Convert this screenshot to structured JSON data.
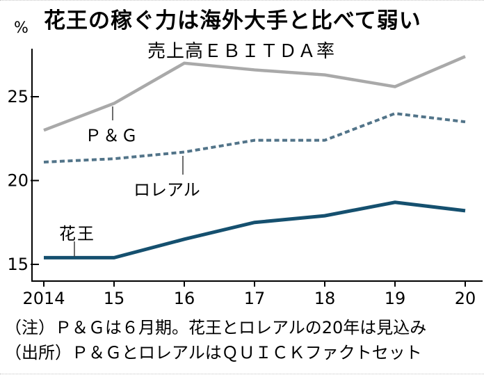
{
  "page": {
    "title": "花王の稼ぐ力は海外大手と比べて弱い",
    "unit_label": "%",
    "notes": [
      "（注）Ｐ＆Ｇは６月期。花王とロレアルの20年は見込み",
      "（出所）Ｐ＆ＧとロレアルはＱＵＩＣＫファクトセット"
    ]
  },
  "chart_data": {
    "type": "line",
    "title": "売上高ＥＢＩＴＤＡ率",
    "xlabel": "",
    "ylabel": "%",
    "categories": [
      "2014",
      "15",
      "16",
      "17",
      "18",
      "19",
      "20"
    ],
    "series": [
      {
        "name": "Ｐ＆Ｇ",
        "values": [
          23.0,
          24.6,
          27.0,
          26.6,
          26.3,
          25.6,
          27.4
        ],
        "color": "#a9a9a9",
        "style": "solid"
      },
      {
        "name": "ロレアル",
        "values": [
          21.1,
          21.3,
          21.7,
          22.4,
          22.4,
          24.0,
          23.5
        ],
        "color": "#527489",
        "style": "dashed"
      },
      {
        "name": "花王",
        "values": [
          15.4,
          15.4,
          16.5,
          17.5,
          17.9,
          18.7,
          18.2
        ],
        "color": "#15506f",
        "style": "solid"
      }
    ],
    "yticks": [
      25,
      20,
      15
    ],
    "ylim": [
      14.0,
      28.4
    ],
    "grid": false,
    "legend": "inline-labels",
    "axis_color": "#000000"
  }
}
